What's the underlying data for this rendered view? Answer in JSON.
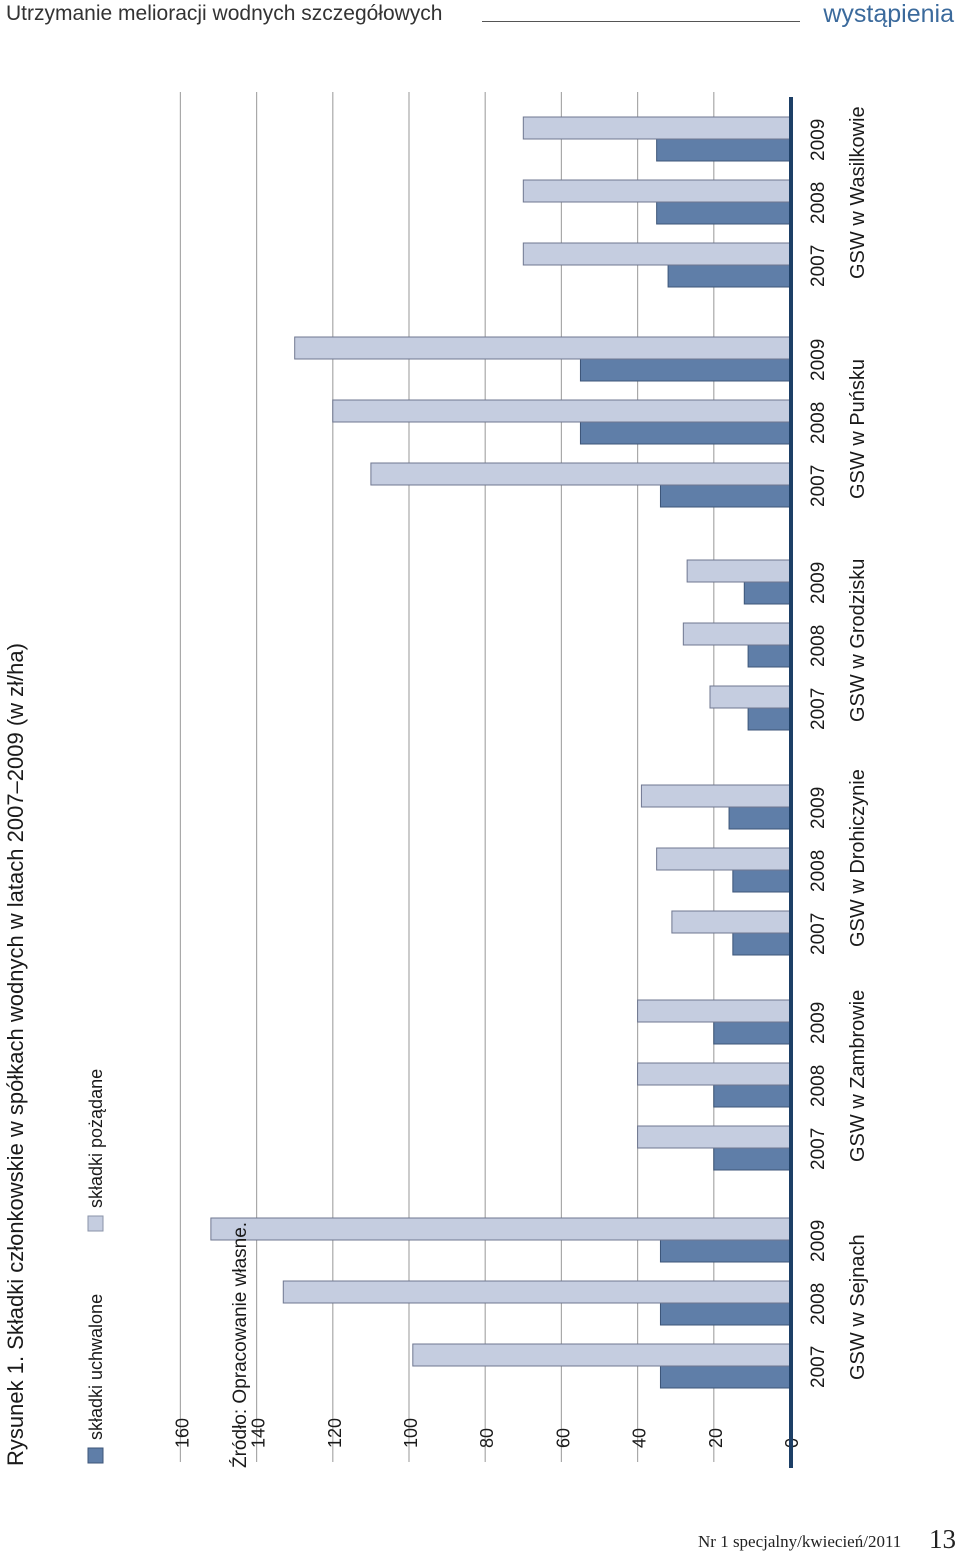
{
  "header": {
    "section_title": "Utrzymanie melioracji wodnych szczegółowych",
    "brand": "wystąpienia"
  },
  "footer": {
    "issue": "Nr 1 specjalny/kwiecień/2011",
    "page_number": "13"
  },
  "colors": {
    "uchwalone": "#5f7ea8",
    "pozadane": "#c5cde0",
    "grid": "#a9a9a9",
    "axis": "#1d3f66"
  },
  "chart_data": {
    "type": "bar",
    "orientation": "horizontal",
    "title": "Rysunek 1. Składki członkowskie w spółkach wodnych w latach 2007–2009 (w zł/ha)",
    "xlabel": "",
    "ylabel": "",
    "value_axis_ticks": [
      "0",
      "20",
      "40",
      "60",
      "80",
      "100",
      "120",
      "140",
      "160"
    ],
    "value_range": [
      0,
      160
    ],
    "grid": true,
    "legend_position": "top",
    "source": "Źródło: Opracowanie własne.",
    "series": [
      {
        "name": "składki uchwalone",
        "color": "#5f7ea8"
      },
      {
        "name": "składki pożądane",
        "color": "#c5cde0"
      }
    ],
    "groups": [
      {
        "name": "GSW w Sejnach",
        "years": [
          "2007",
          "2008",
          "2009"
        ],
        "uchwalone": [
          34,
          34,
          34
        ],
        "pozadane": [
          99,
          133,
          152
        ]
      },
      {
        "name": "GSW w Zambrowie",
        "years": [
          "2007",
          "2008",
          "2009"
        ],
        "uchwalone": [
          20,
          20,
          20
        ],
        "pozadane": [
          40,
          40,
          40
        ]
      },
      {
        "name": "GSW w Drohiczynie",
        "years": [
          "2007",
          "2008",
          "2009"
        ],
        "uchwalone": [
          15,
          15,
          16
        ],
        "pozadane": [
          31,
          35,
          39
        ]
      },
      {
        "name": "GSW w Grodzisku",
        "years": [
          "2007",
          "2008",
          "2009"
        ],
        "uchwalone": [
          11,
          11,
          12
        ],
        "pozadane": [
          21,
          28,
          27
        ]
      },
      {
        "name": "GSW w Puńsku",
        "years": [
          "2007",
          "2008",
          "2009"
        ],
        "uchwalone": [
          34,
          55,
          55
        ],
        "pozadane": [
          110,
          120,
          130
        ]
      },
      {
        "name": "GSW w Wasilkowie",
        "years": [
          "2007",
          "2008",
          "2009"
        ],
        "uchwalone": [
          32,
          35,
          35
        ],
        "pozadane": [
          70,
          70,
          70
        ]
      }
    ]
  }
}
